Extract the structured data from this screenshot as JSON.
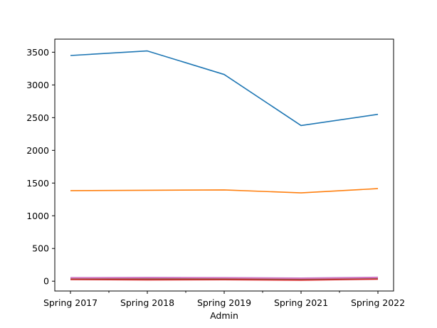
{
  "chart_data": {
    "type": "line",
    "title": "",
    "xlabel": "Admin",
    "ylabel": "",
    "categories": [
      "Spring 2017",
      "Spring 2018",
      "Spring 2019",
      "Spring 2021",
      "Spring 2022"
    ],
    "ylim": [
      -150,
      3700
    ],
    "yticks": [
      0,
      500,
      1000,
      1500,
      2000,
      2500,
      3000,
      3500
    ],
    "grid": false,
    "legend": "none",
    "series": [
      {
        "color": "#1f77b4",
        "values": [
          3450,
          3520,
          3160,
          2380,
          2550
        ]
      },
      {
        "color": "#ff7f0e",
        "values": [
          1385,
          1390,
          1395,
          1350,
          1415
        ]
      },
      {
        "color": "#2ca02c",
        "values": [
          30,
          28,
          30,
          20,
          35
        ]
      },
      {
        "color": "#d62728",
        "values": [
          25,
          20,
          22,
          15,
          30
        ]
      },
      {
        "color": "#9467bd",
        "values": [
          55,
          58,
          55,
          48,
          60
        ]
      },
      {
        "color": "#8c564b",
        "values": [
          40,
          38,
          40,
          32,
          45
        ]
      },
      {
        "color": "#e377c2",
        "values": [
          50,
          52,
          50,
          44,
          55
        ]
      }
    ]
  }
}
